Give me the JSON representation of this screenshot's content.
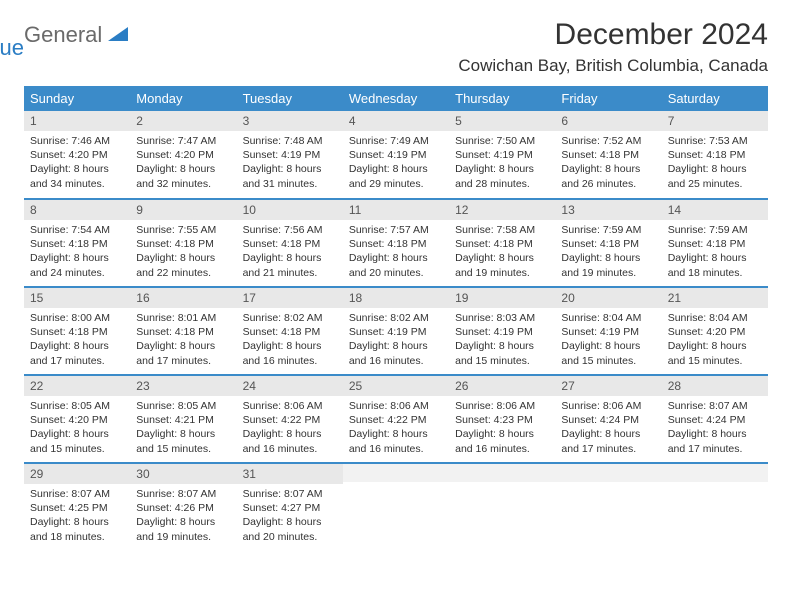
{
  "logo": {
    "text1": "General",
    "text2": "Blue"
  },
  "title": "December 2024",
  "location": "Cowichan Bay, British Columbia, Canada",
  "colors": {
    "header_bg": "#3b8bc9",
    "header_text": "#ffffff",
    "daynum_bg": "#e8e8e8",
    "border": "#3b8bc9",
    "logo_gray": "#6a6a6a",
    "logo_blue": "#2a7dc4",
    "text": "#333333",
    "background": "#ffffff"
  },
  "weekdays": [
    "Sunday",
    "Monday",
    "Tuesday",
    "Wednesday",
    "Thursday",
    "Friday",
    "Saturday"
  ],
  "weeks": [
    [
      {
        "n": "1",
        "sunrise": "7:46 AM",
        "sunset": "4:20 PM",
        "dl": "8 hours and 34 minutes."
      },
      {
        "n": "2",
        "sunrise": "7:47 AM",
        "sunset": "4:20 PM",
        "dl": "8 hours and 32 minutes."
      },
      {
        "n": "3",
        "sunrise": "7:48 AM",
        "sunset": "4:19 PM",
        "dl": "8 hours and 31 minutes."
      },
      {
        "n": "4",
        "sunrise": "7:49 AM",
        "sunset": "4:19 PM",
        "dl": "8 hours and 29 minutes."
      },
      {
        "n": "5",
        "sunrise": "7:50 AM",
        "sunset": "4:19 PM",
        "dl": "8 hours and 28 minutes."
      },
      {
        "n": "6",
        "sunrise": "7:52 AM",
        "sunset": "4:18 PM",
        "dl": "8 hours and 26 minutes."
      },
      {
        "n": "7",
        "sunrise": "7:53 AM",
        "sunset": "4:18 PM",
        "dl": "8 hours and 25 minutes."
      }
    ],
    [
      {
        "n": "8",
        "sunrise": "7:54 AM",
        "sunset": "4:18 PM",
        "dl": "8 hours and 24 minutes."
      },
      {
        "n": "9",
        "sunrise": "7:55 AM",
        "sunset": "4:18 PM",
        "dl": "8 hours and 22 minutes."
      },
      {
        "n": "10",
        "sunrise": "7:56 AM",
        "sunset": "4:18 PM",
        "dl": "8 hours and 21 minutes."
      },
      {
        "n": "11",
        "sunrise": "7:57 AM",
        "sunset": "4:18 PM",
        "dl": "8 hours and 20 minutes."
      },
      {
        "n": "12",
        "sunrise": "7:58 AM",
        "sunset": "4:18 PM",
        "dl": "8 hours and 19 minutes."
      },
      {
        "n": "13",
        "sunrise": "7:59 AM",
        "sunset": "4:18 PM",
        "dl": "8 hours and 19 minutes."
      },
      {
        "n": "14",
        "sunrise": "7:59 AM",
        "sunset": "4:18 PM",
        "dl": "8 hours and 18 minutes."
      }
    ],
    [
      {
        "n": "15",
        "sunrise": "8:00 AM",
        "sunset": "4:18 PM",
        "dl": "8 hours and 17 minutes."
      },
      {
        "n": "16",
        "sunrise": "8:01 AM",
        "sunset": "4:18 PM",
        "dl": "8 hours and 17 minutes."
      },
      {
        "n": "17",
        "sunrise": "8:02 AM",
        "sunset": "4:18 PM",
        "dl": "8 hours and 16 minutes."
      },
      {
        "n": "18",
        "sunrise": "8:02 AM",
        "sunset": "4:19 PM",
        "dl": "8 hours and 16 minutes."
      },
      {
        "n": "19",
        "sunrise": "8:03 AM",
        "sunset": "4:19 PM",
        "dl": "8 hours and 15 minutes."
      },
      {
        "n": "20",
        "sunrise": "8:04 AM",
        "sunset": "4:19 PM",
        "dl": "8 hours and 15 minutes."
      },
      {
        "n": "21",
        "sunrise": "8:04 AM",
        "sunset": "4:20 PM",
        "dl": "8 hours and 15 minutes."
      }
    ],
    [
      {
        "n": "22",
        "sunrise": "8:05 AM",
        "sunset": "4:20 PM",
        "dl": "8 hours and 15 minutes."
      },
      {
        "n": "23",
        "sunrise": "8:05 AM",
        "sunset": "4:21 PM",
        "dl": "8 hours and 15 minutes."
      },
      {
        "n": "24",
        "sunrise": "8:06 AM",
        "sunset": "4:22 PM",
        "dl": "8 hours and 16 minutes."
      },
      {
        "n": "25",
        "sunrise": "8:06 AM",
        "sunset": "4:22 PM",
        "dl": "8 hours and 16 minutes."
      },
      {
        "n": "26",
        "sunrise": "8:06 AM",
        "sunset": "4:23 PM",
        "dl": "8 hours and 16 minutes."
      },
      {
        "n": "27",
        "sunrise": "8:06 AM",
        "sunset": "4:24 PM",
        "dl": "8 hours and 17 minutes."
      },
      {
        "n": "28",
        "sunrise": "8:07 AM",
        "sunset": "4:24 PM",
        "dl": "8 hours and 17 minutes."
      }
    ],
    [
      {
        "n": "29",
        "sunrise": "8:07 AM",
        "sunset": "4:25 PM",
        "dl": "8 hours and 18 minutes."
      },
      {
        "n": "30",
        "sunrise": "8:07 AM",
        "sunset": "4:26 PM",
        "dl": "8 hours and 19 minutes."
      },
      {
        "n": "31",
        "sunrise": "8:07 AM",
        "sunset": "4:27 PM",
        "dl": "8 hours and 20 minutes."
      },
      {
        "empty": true
      },
      {
        "empty": true
      },
      {
        "empty": true
      },
      {
        "empty": true
      }
    ]
  ],
  "labels": {
    "sunrise": "Sunrise: ",
    "sunset": "Sunset: ",
    "daylight": "Daylight: "
  }
}
